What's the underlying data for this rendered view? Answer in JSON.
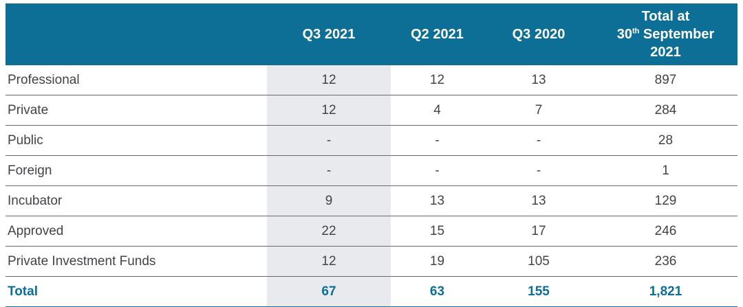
{
  "colors": {
    "header_bg": "#0d6e96",
    "header_text": "#ffffff",
    "shaded_column_bg": "#e8eaee",
    "body_text": "#414348",
    "total_text": "#0d6e96",
    "row_divider": "#67686b",
    "bottom_border": "#0d6e96"
  },
  "table": {
    "columns": [
      {
        "label": ""
      },
      {
        "label": "Q3 2021",
        "shaded": true
      },
      {
        "label": "Q2 2021"
      },
      {
        "label": "Q3 2020"
      },
      {
        "full_label": "Total at 30th September 2021",
        "line1": "Total at",
        "day": "30",
        "ordinal_suffix": "th",
        "month": "September",
        "year": "2021"
      }
    ],
    "rows": [
      {
        "label": "Professional",
        "values": [
          "12",
          "12",
          "13",
          "897"
        ]
      },
      {
        "label": "Private",
        "values": [
          "12",
          "4",
          "7",
          "284"
        ]
      },
      {
        "label": "Public",
        "values": [
          "-",
          "-",
          "-",
          "28"
        ]
      },
      {
        "label": "Foreign",
        "values": [
          "-",
          "-",
          "-",
          "1"
        ]
      },
      {
        "label": "Incubator",
        "values": [
          "9",
          "13",
          "13",
          "129"
        ]
      },
      {
        "label": "Approved",
        "values": [
          "22",
          "15",
          "17",
          "246"
        ]
      },
      {
        "label": "Private Investment Funds",
        "values": [
          "12",
          "19",
          "105",
          "236"
        ]
      }
    ],
    "total_row": {
      "label": "Total",
      "values": [
        "67",
        "63",
        "155",
        "1,821"
      ]
    }
  },
  "chart_data": {
    "type": "table",
    "columns": [
      "",
      "Q3 2021",
      "Q2 2021",
      "Q3 2020",
      "Total at 30th September 2021"
    ],
    "rows": [
      [
        "Professional",
        "12",
        "12",
        "13",
        "897"
      ],
      [
        "Private",
        "12",
        "4",
        "7",
        "284"
      ],
      [
        "Public",
        "-",
        "-",
        "-",
        "28"
      ],
      [
        "Foreign",
        "-",
        "-",
        "-",
        "1"
      ],
      [
        "Incubator",
        "9",
        "13",
        "13",
        "129"
      ],
      [
        "Approved",
        "22",
        "15",
        "17",
        "246"
      ],
      [
        "Private Investment Funds",
        "12",
        "19",
        "105",
        "236"
      ],
      [
        "Total",
        "67",
        "63",
        "155",
        "1,821"
      ]
    ],
    "highlighted_column": "Q3 2021",
    "title": "",
    "legend_position": "none"
  }
}
